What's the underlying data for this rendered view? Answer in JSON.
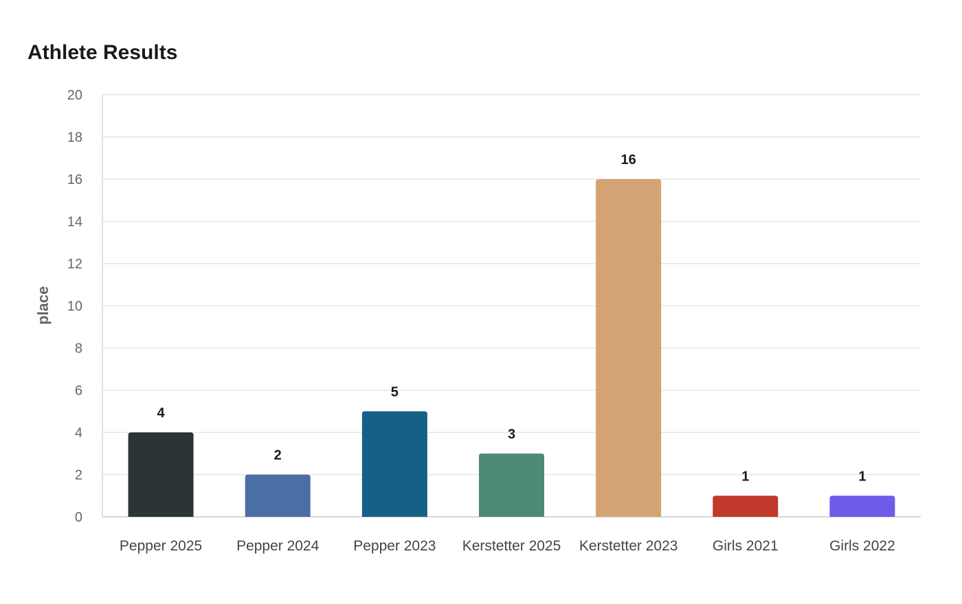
{
  "chart_data": {
    "type": "bar",
    "title": "Athlete Results",
    "xlabel": "",
    "ylabel": "place",
    "ylim": [
      0,
      20
    ],
    "yticks": [
      0,
      2,
      4,
      6,
      8,
      10,
      12,
      14,
      16,
      18,
      20
    ],
    "grid": true,
    "categories": [
      "Pepper 2025",
      "Pepper 2024",
      "Pepper 2023",
      "Kerstetter 2025",
      "Kerstetter 2023",
      "Girls 2021",
      "Girls 2022"
    ],
    "values": [
      4,
      2,
      5,
      3,
      16,
      1,
      1
    ],
    "colors": [
      "#2d3436",
      "#4a6fa5",
      "#166088",
      "#4d8b77",
      "#d4a373",
      "#c0392b",
      "#6c5ce7"
    ],
    "data_labels": true
  }
}
